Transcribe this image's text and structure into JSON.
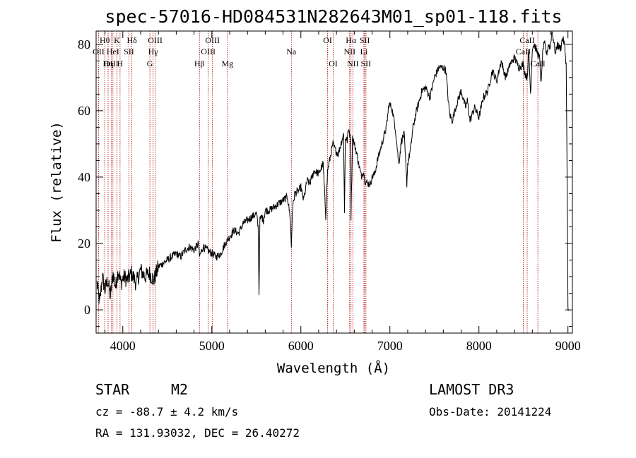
{
  "chart_data": {
    "type": "line",
    "title": "spec-57016-HD084531N282643M01_sp01-118.fits",
    "xlabel": "Wavelength (Å)",
    "ylabel": "Flux (relative)",
    "xlim": [
      3700,
      9050
    ],
    "ylim": [
      -7,
      84
    ],
    "xticks": [
      4000,
      5000,
      6000,
      7000,
      8000,
      9000
    ],
    "yticks": [
      0,
      20,
      40,
      60,
      80
    ],
    "series": [
      {
        "name": "flux",
        "x": [
          3710,
          3740,
          3770,
          3800,
          3830,
          3860,
          3890,
          3920,
          3950,
          3980,
          4010,
          4050,
          4100,
          4150,
          4200,
          4250,
          4300,
          4350,
          4400,
          4450,
          4500,
          4550,
          4600,
          4650,
          4700,
          4750,
          4800,
          4850,
          4860,
          4900,
          4950,
          5000,
          5050,
          5100,
          5150,
          5200,
          5250,
          5300,
          5350,
          5400,
          5450,
          5500,
          5520,
          5530,
          5540,
          5560,
          5580,
          5600,
          5650,
          5700,
          5750,
          5800,
          5850,
          5880,
          5893,
          5905,
          5930,
          5980,
          6000,
          6030,
          6070,
          6100,
          6150,
          6200,
          6250,
          6280,
          6300,
          6330,
          6360,
          6390,
          6420,
          6450,
          6480,
          6490,
          6500,
          6520,
          6540,
          6560,
          6563,
          6580,
          6600,
          6620,
          6650,
          6680,
          6700,
          6720,
          6750,
          6780,
          6800,
          6830,
          6860,
          6900,
          6930,
          6960,
          6990,
          7020,
          7060,
          7100,
          7130,
          7160,
          7190,
          7200,
          7230,
          7260,
          7300,
          7330,
          7360,
          7400,
          7450,
          7500,
          7550,
          7600,
          7630,
          7650,
          7670,
          7700,
          7750,
          7800,
          7850,
          7870,
          7900,
          7950,
          8000,
          8050,
          8100,
          8150,
          8200,
          8250,
          8300,
          8350,
          8400,
          8450,
          8498,
          8520,
          8542,
          8560,
          8580,
          8600,
          8620,
          8650,
          8662,
          8680,
          8700,
          8720,
          8740,
          8760,
          8780,
          8800,
          8820,
          8840,
          8860,
          8880,
          8900,
          8920,
          8940,
          8960,
          8980,
          8990,
          9000,
          9010
        ],
        "values": [
          8,
          2,
          10,
          6,
          9,
          4,
          11,
          7,
          12,
          8,
          10,
          9,
          11,
          8,
          12,
          10,
          11,
          9,
          13,
          14,
          15,
          16,
          17,
          16,
          18,
          19,
          18,
          20,
          16,
          19,
          18,
          17,
          16,
          17,
          20,
          22,
          24,
          23,
          26,
          27,
          28,
          29,
          25,
          5,
          27,
          28,
          27,
          30,
          30,
          31,
          32,
          33,
          34,
          28,
          19,
          30,
          35,
          36,
          37,
          33,
          39,
          38,
          42,
          41,
          44,
          28,
          42,
          46,
          50,
          48,
          47,
          50,
          53,
          29,
          52,
          51,
          55,
          50,
          28,
          52,
          50,
          48,
          44,
          40,
          42,
          39,
          38,
          38,
          40,
          41,
          45,
          49,
          52,
          55,
          62,
          61,
          55,
          44,
          51,
          53,
          38,
          44,
          48,
          55,
          60,
          63,
          66,
          67,
          64,
          70,
          73,
          73,
          72,
          65,
          59,
          57,
          62,
          66,
          61,
          63,
          57,
          61,
          58,
          64,
          66,
          72,
          69,
          75,
          70,
          74,
          76,
          73,
          74,
          71,
          70,
          78,
          65,
          79,
          80,
          78,
          77,
          76,
          68,
          79,
          80,
          77,
          80,
          79,
          84,
          81,
          77,
          80,
          79,
          79,
          82,
          80,
          74,
          44,
          0,
          0
        ]
      }
    ],
    "line_marks": [
      {
        "label": "Hθ",
        "w": 3797,
        "row": 0
      },
      {
        "label": "OII",
        "w": 3727,
        "row": 1
      },
      {
        "label": "OIII",
        "w": 3869,
        "row": 2
      },
      {
        "label": "K",
        "w": 3934,
        "row": 0
      },
      {
        "label": "HeI",
        "w": 3889,
        "row": 1
      },
      {
        "label": "Hη",
        "w": 3835,
        "row": 2
      },
      {
        "label": "Hδ",
        "w": 4102,
        "row": 0
      },
      {
        "label": "SII",
        "w": 4069,
        "row": 1
      },
      {
        "label": "H",
        "w": 3969,
        "row": 2
      },
      {
        "label": "OIII",
        "w": 4363,
        "row": 0
      },
      {
        "label": "Hγ",
        "w": 4340,
        "row": 1
      },
      {
        "label": "G",
        "w": 4304,
        "row": 2
      },
      {
        "label": "Hβ",
        "w": 4861,
        "row": 2
      },
      {
        "label": "OIII",
        "w": 5007,
        "row": 0
      },
      {
        "label": "OIII",
        "w": 4959,
        "row": 1
      },
      {
        "label": "Mg",
        "w": 5175,
        "row": 2
      },
      {
        "label": "Na",
        "w": 5893,
        "row": 1
      },
      {
        "label": "OI",
        "w": 6300,
        "row": 0
      },
      {
        "label": "OI",
        "w": 6363,
        "row": 2
      },
      {
        "label": "Hα",
        "w": 6563,
        "row": 0
      },
      {
        "label": "NII",
        "w": 6548,
        "row": 1
      },
      {
        "label": "NII",
        "w": 6584,
        "row": 2
      },
      {
        "label": "SII",
        "w": 6717,
        "row": 0
      },
      {
        "label": "Li",
        "w": 6708,
        "row": 1
      },
      {
        "label": "SII",
        "w": 6731,
        "row": 2
      },
      {
        "label": "CaII",
        "w": 8542,
        "row": 0
      },
      {
        "label": "CaII",
        "w": 8498,
        "row": 1
      },
      {
        "label": "CaII",
        "w": 8662,
        "row": 2
      }
    ]
  },
  "info": {
    "object_class": "STAR",
    "subclass": "M2",
    "survey": "LAMOST DR3",
    "cz": "cz = -88.7 ± 4.2 km/s",
    "obs_date": "Obs-Date: 20141224",
    "coords": "RA = 131.93032, DEC =  26.40272"
  }
}
